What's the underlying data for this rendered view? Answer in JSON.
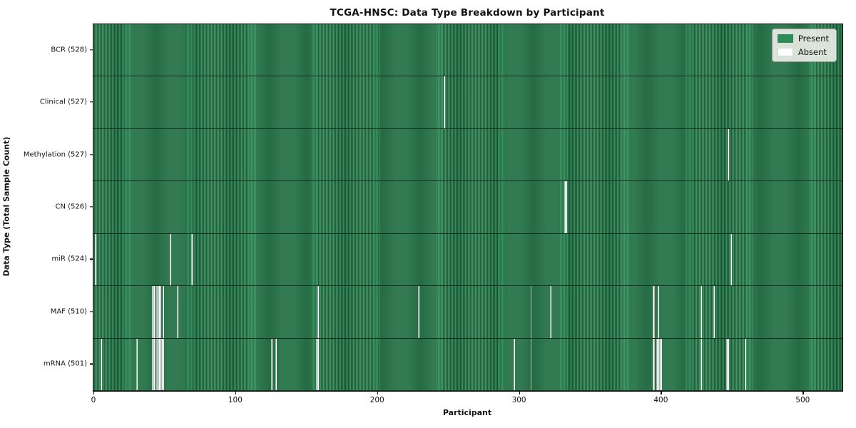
{
  "title": "TCGA-HNSC: Data Type Breakdown by Participant",
  "x_axis": {
    "label": "Participant",
    "ticks": [
      0,
      100,
      200,
      300,
      400,
      500
    ]
  },
  "y_axis": {
    "label": "Data Type (Total Sample Count)"
  },
  "legend": {
    "present_label": "Present",
    "absent_label": "Absent"
  },
  "colors": {
    "present": "#2e8b57",
    "present_stripe_dark": "#1c5433",
    "absent": "#ffffff",
    "frame": "#000000"
  },
  "chart_data": {
    "type": "heatmap",
    "title": "TCGA-HNSC: Data Type Breakdown by Participant",
    "xlabel": "Participant",
    "ylabel": "Data Type (Total Sample Count)",
    "x_range": [
      0,
      528
    ],
    "n_participants": 528,
    "grid": false,
    "legend_position": "upper right",
    "legend_entries": [
      "Present",
      "Absent"
    ],
    "rows": [
      {
        "label": "BCR (528)",
        "data_type": "BCR",
        "present_count": 528,
        "absent_participants": []
      },
      {
        "label": "Clinical (527)",
        "data_type": "Clinical",
        "present_count": 527,
        "absent_participants": [
          247
        ]
      },
      {
        "label": "Methylation (527)",
        "data_type": "Methylation",
        "present_count": 527,
        "absent_participants": [
          447
        ]
      },
      {
        "label": "CN (526)",
        "data_type": "CN",
        "present_count": 526,
        "absent_participants": [
          332,
          333
        ]
      },
      {
        "label": "miR (524)",
        "data_type": "miR",
        "present_count": 524,
        "absent_participants": [
          1,
          54,
          69,
          449
        ]
      },
      {
        "label": "MAF (510)",
        "data_type": "MAF",
        "present_count": 510,
        "absent_participants": [
          41,
          42,
          43,
          44,
          45,
          46,
          47,
          49,
          59,
          158,
          229,
          308,
          322,
          394,
          395,
          398,
          428,
          437
        ]
      },
      {
        "label": "mRNA (501)",
        "data_type": "mRNA",
        "present_count": 501,
        "absent_participants": [
          5,
          30,
          41,
          42,
          43,
          44,
          45,
          46,
          47,
          48,
          49,
          125,
          128,
          157,
          158,
          296,
          308,
          394,
          395,
          397,
          398,
          399,
          400,
          428,
          446,
          447,
          459
        ]
      }
    ]
  }
}
